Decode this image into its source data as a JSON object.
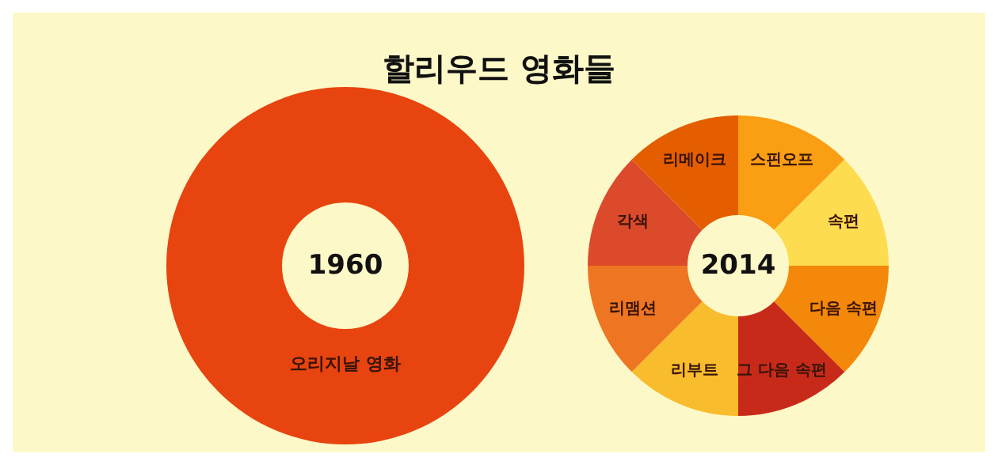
{
  "chart_data": [
    {
      "type": "donut",
      "title": "할리우드 영화들",
      "annotations": [
        "1960"
      ],
      "categories": [
        "오리지날 영화"
      ],
      "values": [
        100
      ],
      "colors": [
        "#e8440f"
      ]
    },
    {
      "type": "donut",
      "annotations": [
        "2014"
      ],
      "categories": [
        "스핀오프",
        "속편",
        "다음 속편",
        "그 다음 속편",
        "리부트",
        "리맴션",
        "각색",
        "리메이크"
      ],
      "values": [
        12.5,
        12.5,
        12.5,
        12.5,
        12.5,
        12.5,
        12.5,
        12.5
      ],
      "colors": [
        "#fa9e14",
        "#fedc50",
        "#f4880a",
        "#c82a1a",
        "#f8bc2c",
        "#ee7622",
        "#dc4a2c",
        "#e45e00"
      ]
    }
  ]
}
